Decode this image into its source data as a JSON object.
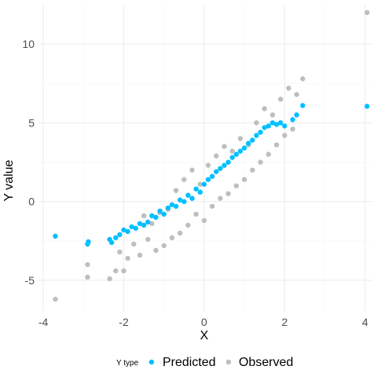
{
  "chart_data": {
    "type": "scatter",
    "xlabel": "X",
    "ylabel": "Y value",
    "xlim": [
      -4.1,
      4.2
    ],
    "ylim": [
      -7.0,
      12.5
    ],
    "x_ticks": [
      -4,
      -2,
      0,
      2,
      4
    ],
    "y_ticks": [
      -5,
      0,
      5,
      10
    ],
    "x_tick_labels": [
      "-4",
      "-2",
      "0",
      "2",
      "4"
    ],
    "y_tick_labels": [
      "-5",
      "0",
      "5",
      "10"
    ],
    "grid": true,
    "legend": {
      "title": "Y type",
      "position": "bottom",
      "entries": [
        "Predicted",
        "Observed"
      ]
    },
    "colors": {
      "Predicted": "#00bfff",
      "Observed": "#bebebe"
    },
    "series": [
      {
        "name": "Observed",
        "color": "#bebebe",
        "points": [
          [
            -3.7,
            -6.2
          ],
          [
            -2.9,
            -4.8
          ],
          [
            -2.9,
            -4.0
          ],
          [
            -2.35,
            -4.9
          ],
          [
            -2.2,
            -4.4
          ],
          [
            -2.1,
            -3.2
          ],
          [
            -2.0,
            -4.4
          ],
          [
            -1.9,
            -3.6
          ],
          [
            -1.75,
            -2.7
          ],
          [
            -1.6,
            -3.4
          ],
          [
            -1.5,
            -0.9
          ],
          [
            -1.4,
            -2.4
          ],
          [
            -1.3,
            -1.4
          ],
          [
            -1.2,
            -3.1
          ],
          [
            -1.1,
            -0.7
          ],
          [
            -1.0,
            -2.8
          ],
          [
            -0.9,
            -0.5
          ],
          [
            -0.8,
            -2.3
          ],
          [
            -0.7,
            0.7
          ],
          [
            -0.6,
            -2.0
          ],
          [
            -0.5,
            1.4
          ],
          [
            -0.4,
            -1.5
          ],
          [
            -0.3,
            2.0
          ],
          [
            -0.2,
            -0.8
          ],
          [
            -0.1,
            1.1
          ],
          [
            0.0,
            -1.2
          ],
          [
            0.1,
            2.3
          ],
          [
            0.2,
            -0.3
          ],
          [
            0.3,
            2.9
          ],
          [
            0.4,
            0.2
          ],
          [
            0.5,
            3.5
          ],
          [
            0.6,
            0.5
          ],
          [
            0.7,
            3.2
          ],
          [
            0.8,
            1.0
          ],
          [
            0.9,
            4.0
          ],
          [
            1.0,
            1.4
          ],
          [
            1.1,
            3.6
          ],
          [
            1.2,
            2.0
          ],
          [
            1.3,
            5.0
          ],
          [
            1.4,
            2.5
          ],
          [
            1.5,
            5.9
          ],
          [
            1.6,
            3.0
          ],
          [
            1.7,
            5.5
          ],
          [
            1.8,
            3.6
          ],
          [
            1.9,
            6.5
          ],
          [
            2.0,
            4.2
          ],
          [
            2.1,
            7.2
          ],
          [
            2.2,
            4.6
          ],
          [
            2.3,
            6.8
          ],
          [
            2.45,
            7.8
          ],
          [
            4.05,
            12.0
          ]
        ]
      },
      {
        "name": "Predicted",
        "color": "#00bfff",
        "points": [
          [
            -3.7,
            -2.2
          ],
          [
            -2.9,
            -2.7
          ],
          [
            -2.88,
            -2.55
          ],
          [
            -2.35,
            -2.4
          ],
          [
            -2.3,
            -2.6
          ],
          [
            -2.2,
            -2.3
          ],
          [
            -2.1,
            -2.1
          ],
          [
            -2.0,
            -1.8
          ],
          [
            -1.9,
            -1.9
          ],
          [
            -1.8,
            -1.6
          ],
          [
            -1.7,
            -1.7
          ],
          [
            -1.6,
            -1.4
          ],
          [
            -1.5,
            -1.5
          ],
          [
            -1.4,
            -1.3
          ],
          [
            -1.3,
            -0.9
          ],
          [
            -1.2,
            -1.0
          ],
          [
            -1.1,
            -0.6
          ],
          [
            -1.0,
            -0.8
          ],
          [
            -0.9,
            -0.4
          ],
          [
            -0.8,
            -0.2
          ],
          [
            -0.7,
            -0.3
          ],
          [
            -0.6,
            0.1
          ],
          [
            -0.5,
            0.0
          ],
          [
            -0.4,
            0.4
          ],
          [
            -0.3,
            0.2
          ],
          [
            -0.2,
            0.8
          ],
          [
            -0.1,
            0.6
          ],
          [
            0.0,
            1.1
          ],
          [
            0.1,
            1.4
          ],
          [
            0.2,
            1.6
          ],
          [
            0.3,
            1.9
          ],
          [
            0.4,
            2.1
          ],
          [
            0.5,
            2.3
          ],
          [
            0.6,
            2.5
          ],
          [
            0.7,
            2.8
          ],
          [
            0.8,
            3.0
          ],
          [
            0.9,
            3.2
          ],
          [
            1.0,
            3.4
          ],
          [
            1.1,
            3.7
          ],
          [
            1.2,
            3.9
          ],
          [
            1.3,
            4.2
          ],
          [
            1.4,
            4.4
          ],
          [
            1.5,
            4.7
          ],
          [
            1.6,
            4.8
          ],
          [
            1.7,
            5.0
          ],
          [
            1.8,
            4.9
          ],
          [
            1.9,
            5.0
          ],
          [
            2.0,
            4.8
          ],
          [
            2.2,
            5.2
          ],
          [
            2.3,
            5.5
          ],
          [
            2.45,
            6.1
          ],
          [
            4.05,
            6.05
          ]
        ]
      }
    ]
  }
}
